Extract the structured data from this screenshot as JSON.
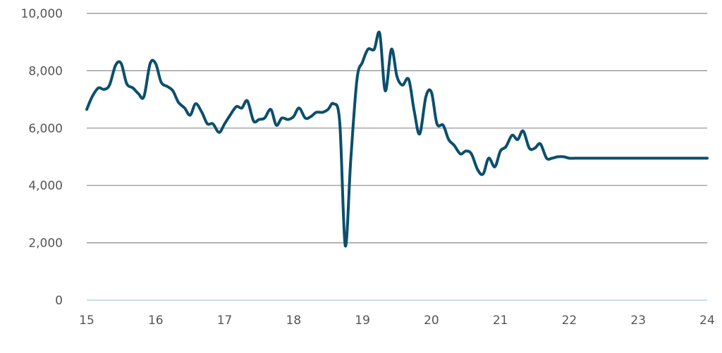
{
  "chart_data": {
    "type": "line",
    "title": "",
    "xlabel": "",
    "ylabel": "",
    "xlim": [
      15,
      24
    ],
    "ylim": [
      0,
      10000
    ],
    "x_ticks": [
      15,
      16,
      17,
      18,
      19,
      20,
      21,
      22,
      23,
      24
    ],
    "x_tick_labels": [
      "15",
      "16",
      "17",
      "18",
      "19",
      "20",
      "21",
      "22",
      "23",
      "24"
    ],
    "y_ticks": [
      0,
      2000,
      4000,
      6000,
      8000,
      10000
    ],
    "y_tick_labels": [
      "0",
      "2,000",
      "4,000",
      "6,000",
      "8,000",
      "10,000"
    ],
    "grid": true,
    "legend": "none",
    "series": [
      {
        "color": "#0b4f6c",
        "x": [
          15.0,
          15.08,
          15.17,
          15.25,
          15.33,
          15.42,
          15.5,
          15.58,
          15.67,
          15.75,
          15.83,
          15.92,
          16.0,
          16.08,
          16.17,
          16.25,
          16.33,
          16.42,
          16.5,
          16.58,
          16.67,
          16.75,
          16.83,
          16.92,
          17.0,
          17.08,
          17.17,
          17.25,
          17.33,
          17.42,
          17.5,
          17.58,
          17.67,
          17.75,
          17.83,
          17.92,
          18.0,
          18.08,
          18.17,
          18.25,
          18.33,
          18.42,
          18.5,
          18.58,
          18.67,
          18.75,
          18.83,
          18.92,
          19.0,
          19.08,
          19.17,
          19.25,
          19.33,
          19.42,
          19.5,
          19.58,
          19.67,
          19.75,
          19.83,
          19.92,
          20.0,
          20.08,
          20.17,
          20.25,
          20.33,
          20.42,
          20.5,
          20.58,
          20.67,
          20.75,
          20.83,
          20.92,
          21.0,
          21.08,
          21.17,
          21.25,
          21.33,
          21.42,
          21.5,
          21.58,
          21.67,
          21.75,
          21.83,
          21.92,
          22.0,
          22.08,
          22.17,
          22.25,
          22.33,
          22.42,
          22.5,
          22.58,
          22.67,
          22.75,
          22.83,
          22.92,
          23.0,
          23.08,
          23.17,
          23.25,
          23.33,
          23.42,
          23.5,
          23.58,
          23.67,
          23.75,
          23.83,
          23.92,
          24.0
        ],
        "y": [
          6650,
          7100,
          7400,
          7350,
          7500,
          8200,
          8250,
          7550,
          7400,
          7200,
          7100,
          8250,
          8250,
          7600,
          7450,
          7300,
          6900,
          6700,
          6450,
          6850,
          6550,
          6150,
          6150,
          5850,
          6150,
          6450,
          6750,
          6700,
          6950,
          6250,
          6300,
          6350,
          6650,
          6100,
          6350,
          6300,
          6400,
          6700,
          6350,
          6400,
          6550,
          6550,
          6650,
          6850,
          6200,
          1900,
          4900,
          7700,
          8300,
          8750,
          8750,
          9300,
          7300,
          8750,
          7800,
          7500,
          7700,
          6600,
          5800,
          7100,
          7250,
          6150,
          6100,
          5600,
          5400,
          5100,
          5200,
          5100,
          4550,
          4400,
          4950,
          4650,
          5200,
          5350,
          5750,
          5600,
          5900,
          5300,
          5300,
          5450,
          4950,
          4950,
          5000,
          5000,
          4950,
          4950,
          4950,
          4950,
          4950,
          4950,
          4950,
          4950,
          4950,
          4950,
          4950,
          4950,
          4950,
          4950,
          4950,
          4950,
          4950,
          4950,
          4950,
          4950,
          4950,
          4950,
          4950,
          4950,
          4950
        ]
      }
    ]
  }
}
